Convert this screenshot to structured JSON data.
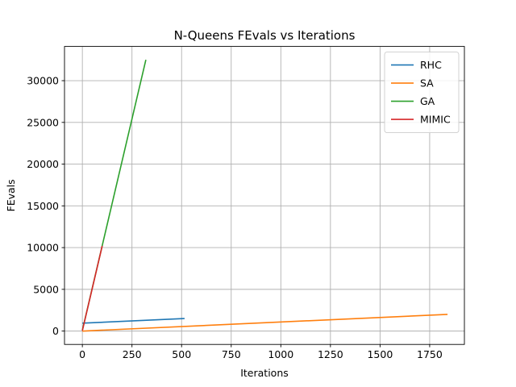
{
  "chart_data": {
    "type": "line",
    "title": "N-Queens FEvals vs Iterations",
    "xlabel": "Iterations",
    "ylabel": "FEvals",
    "xlim": [
      -90,
      1925
    ],
    "ylim": [
      -1600,
      34100
    ],
    "x_ticks": [
      0,
      250,
      500,
      750,
      1000,
      1250,
      1500,
      1750
    ],
    "y_ticks": [
      0,
      5000,
      10000,
      15000,
      20000,
      25000,
      30000
    ],
    "x_tick_labels": [
      "0",
      "250",
      "500",
      "750",
      "1000",
      "1250",
      "1500",
      "1750"
    ],
    "y_tick_labels": [
      "0",
      "5000",
      "10000",
      "15000",
      "20000",
      "25000",
      "30000"
    ],
    "grid": true,
    "legend_position": "top-right",
    "series": [
      {
        "name": "RHC",
        "color": "#1f77b4",
        "points": [
          [
            0,
            950
          ],
          [
            515,
            1500
          ]
        ]
      },
      {
        "name": "SA",
        "color": "#ff7f0e",
        "points": [
          [
            0,
            0
          ],
          [
            1840,
            2000
          ]
        ]
      },
      {
        "name": "GA",
        "color": "#2ca02c",
        "points": [
          [
            0,
            100
          ],
          [
            320,
            32500
          ]
        ]
      },
      {
        "name": "MIMIC",
        "color": "#d62728",
        "points": [
          [
            0,
            50
          ],
          [
            100,
            10200
          ]
        ]
      }
    ]
  }
}
